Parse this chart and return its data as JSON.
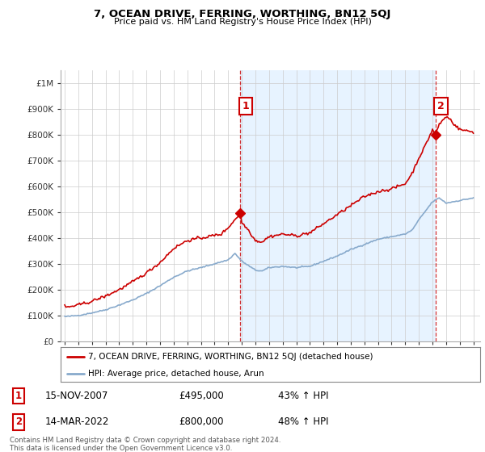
{
  "title": "7, OCEAN DRIVE, FERRING, WORTHING, BN12 5QJ",
  "subtitle": "Price paid vs. HM Land Registry's House Price Index (HPI)",
  "ylabel_ticks": [
    "£0",
    "£100K",
    "£200K",
    "£300K",
    "£400K",
    "£500K",
    "£600K",
    "£700K",
    "£800K",
    "£900K",
    "£1M"
  ],
  "ytick_values": [
    0,
    100000,
    200000,
    300000,
    400000,
    500000,
    600000,
    700000,
    800000,
    900000,
    1000000
  ],
  "ylim": [
    0,
    1050000
  ],
  "sale1_date": 2007.88,
  "sale1_price": 495000,
  "sale2_date": 2022.21,
  "sale2_price": 800000,
  "line1_color": "#cc0000",
  "line2_color": "#88aacc",
  "shade_color": "#ddeeff",
  "annotation_box_color": "#cc0000",
  "legend_entry1": "7, OCEAN DRIVE, FERRING, WORTHING, BN12 5QJ (detached house)",
  "legend_entry2": "HPI: Average price, detached house, Arun",
  "table_row1": [
    "1",
    "15-NOV-2007",
    "£495,000",
    "43% ↑ HPI"
  ],
  "table_row2": [
    "2",
    "14-MAR-2022",
    "£800,000",
    "48% ↑ HPI"
  ],
  "footnote": "Contains HM Land Registry data © Crown copyright and database right 2024.\nThis data is licensed under the Open Government Licence v3.0.",
  "background_color": "#ffffff",
  "grid_color": "#cccccc",
  "xmin": 1994.7,
  "xmax": 2025.5
}
